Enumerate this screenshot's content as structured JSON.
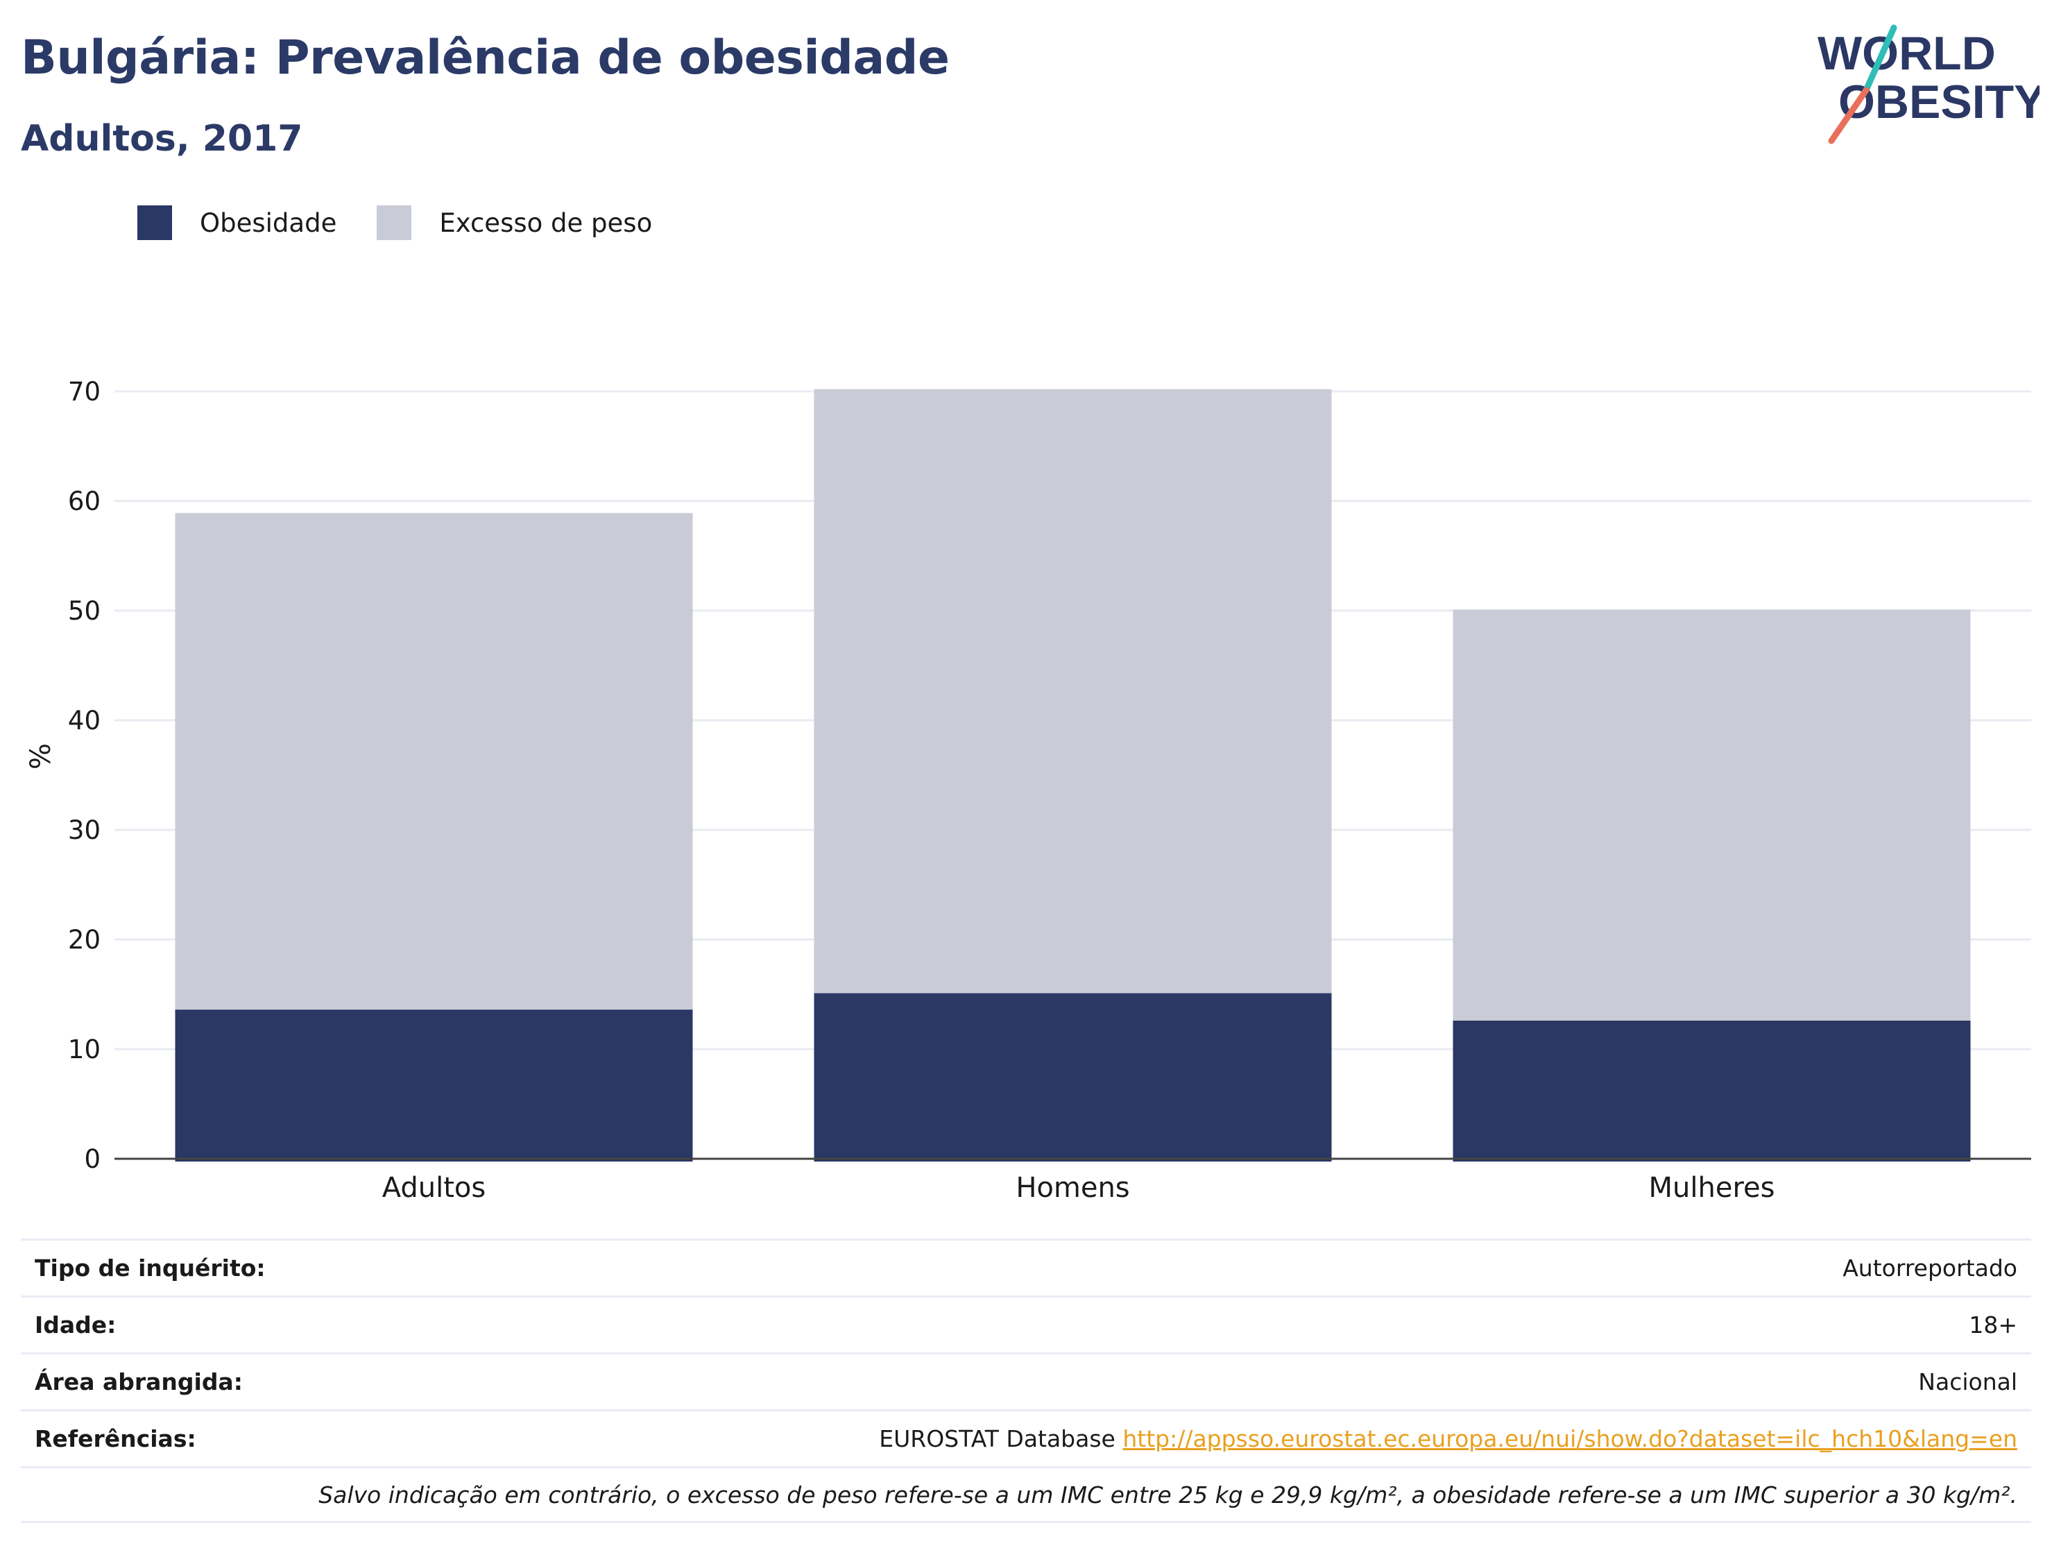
{
  "header": {
    "title": "Bulgária: Prevalência de obesidade",
    "subtitle": "Adultos, 2017"
  },
  "logo": {
    "line1": "WORLD",
    "line2": "OBESITY"
  },
  "legend": [
    {
      "label": "Obesidade",
      "color": "#2b3764"
    },
    {
      "label": "Excesso de peso",
      "color": "#c9cbd6"
    }
  ],
  "chart_data": {
    "type": "bar",
    "stacked": false,
    "overlay": true,
    "categories": [
      "Adultos",
      "Homens",
      "Mulheres"
    ],
    "series": [
      {
        "name": "Excesso de peso",
        "values": [
          58.9,
          70.2,
          50.1
        ],
        "color": "#c9cbd6"
      },
      {
        "name": "Obesidade",
        "values": [
          13.6,
          15.1,
          12.6
        ],
        "color": "#2b3764"
      }
    ],
    "ylabel": "%",
    "xlabel": "",
    "ylim": [
      0,
      70
    ],
    "yticks": [
      0,
      10,
      20,
      30,
      40,
      50,
      60,
      70
    ],
    "grid": true,
    "legend_position": "top-left"
  },
  "info": {
    "survey_label": "Tipo de inquérito:",
    "survey_value": "Autorreportado",
    "age_label": "Idade:",
    "age_value": "18+",
    "area_label": "Área abrangida:",
    "area_value": "Nacional",
    "refs_label": "Referências:",
    "refs_source": "EUROSTAT Database",
    "refs_link": "http://appsso.eurostat.ec.europa.eu/nui/show.do?dataset=ilc_hch10&lang=en",
    "note": "Salvo indicação em contrário, o excesso de peso refere-se a um IMC entre 25 kg e 29,9 kg/m², a obesidade refere-se a um IMC superior a 30 kg/m²."
  }
}
